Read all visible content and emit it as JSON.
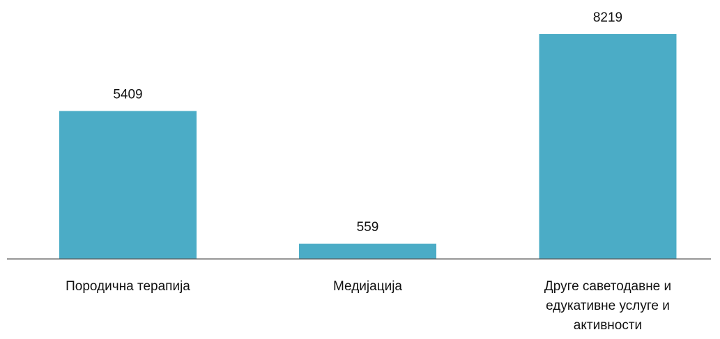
{
  "chart_data": {
    "type": "bar",
    "title": "",
    "xlabel": "",
    "ylabel": "",
    "categories": [
      [
        "Породична терапија"
      ],
      [
        "Медијација"
      ],
      [
        "Друге саветодавне и",
        "едукативне услуге и",
        "активности"
      ]
    ],
    "values": [
      5409,
      559,
      8219
    ],
    "ylim": [
      0,
      8219
    ],
    "grid": false,
    "legend": "none",
    "colors": {
      "bar": "#4BACC6",
      "axis": "#595959",
      "text": "#111111"
    }
  }
}
